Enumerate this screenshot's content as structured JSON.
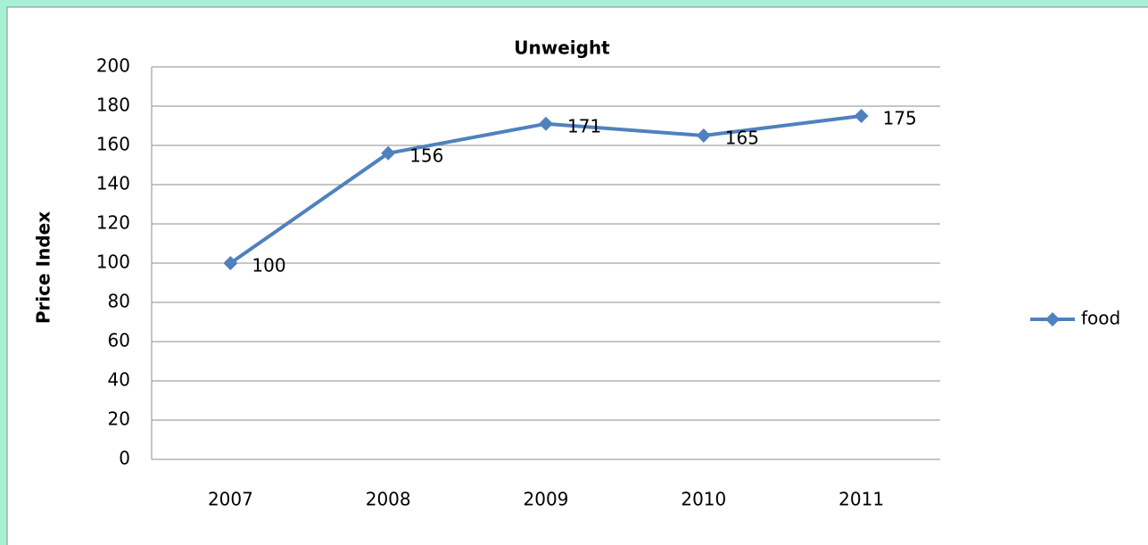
{
  "chart_data": {
    "type": "line",
    "title": "Unweight",
    "ylabel": "Price Index",
    "categories": [
      "2007",
      "2008",
      "2009",
      "2010",
      "2011"
    ],
    "series": [
      {
        "name": "food",
        "color": "#4f81bd",
        "values": [
          100,
          156,
          171,
          165,
          175
        ]
      }
    ],
    "ylim": [
      0,
      200
    ],
    "yticks": [
      0,
      20,
      40,
      60,
      80,
      100,
      120,
      140,
      160,
      180,
      200
    ],
    "grid": true,
    "legend": "right",
    "data_labels": true
  }
}
